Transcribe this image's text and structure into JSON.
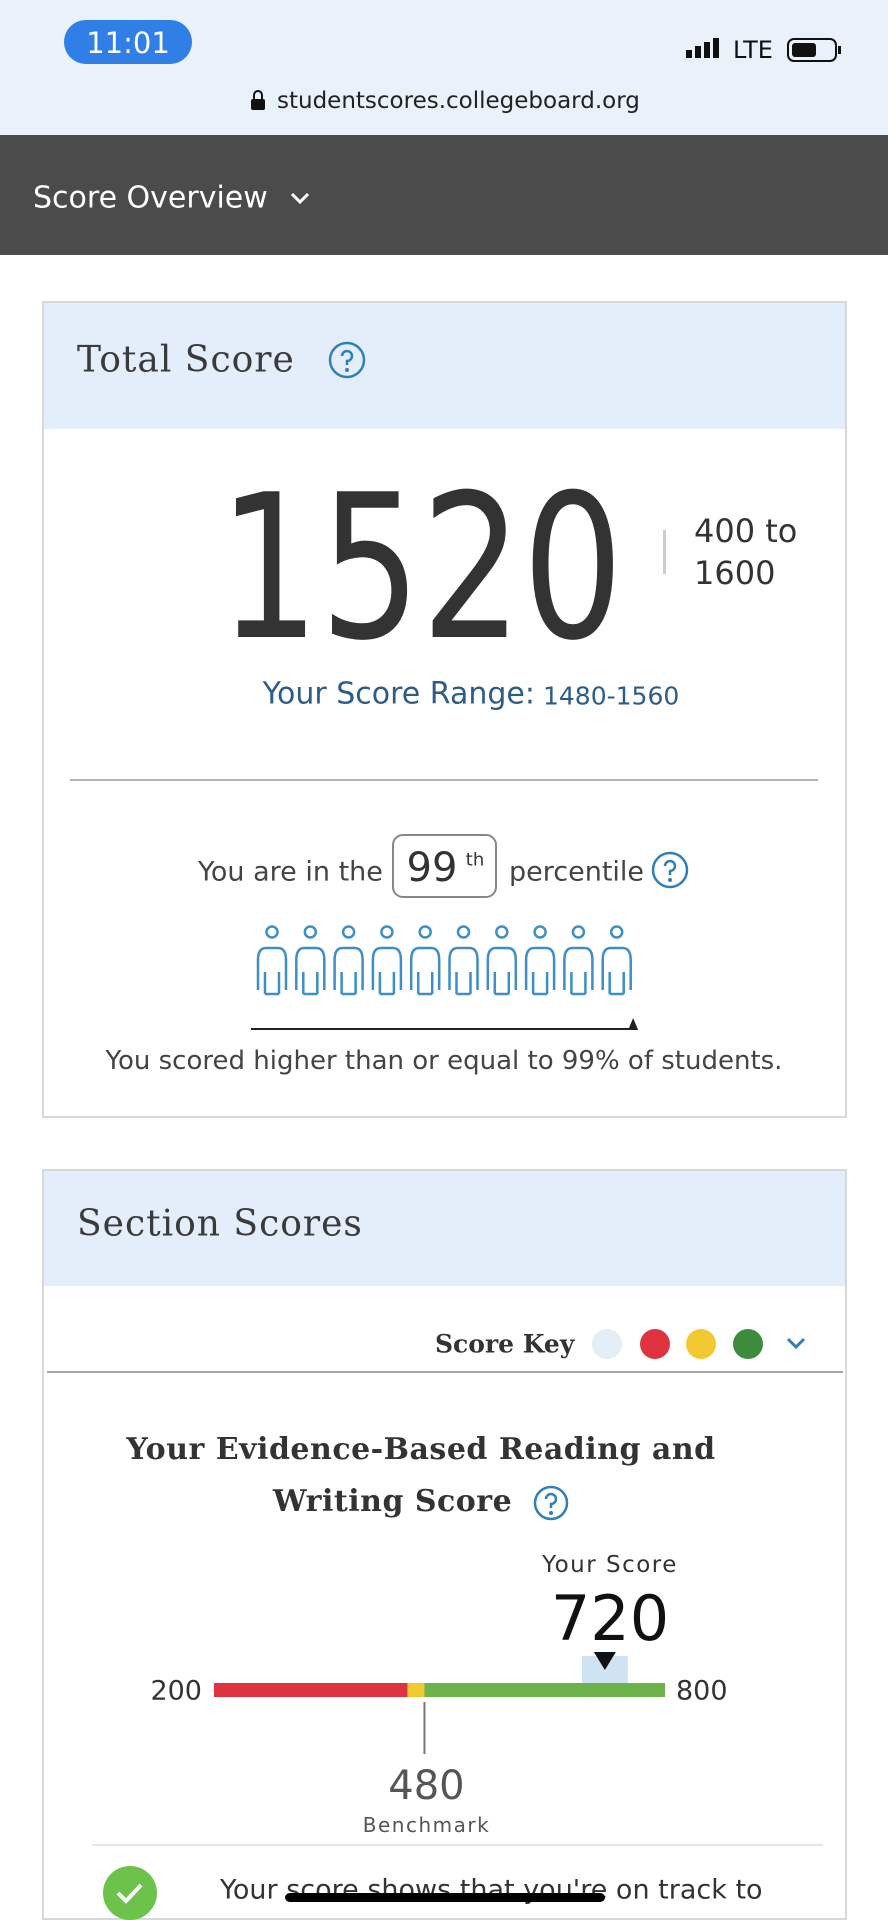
{
  "status_bar": {
    "time": "11:01",
    "network": "LTE"
  },
  "browser": {
    "url": "studentscores.collegeboard.org"
  },
  "nav": {
    "title": "Score Overview"
  },
  "total_score": {
    "title": "Total Score",
    "score": 1520,
    "scale": "400 to 1600",
    "range_label": "Your Score Range:",
    "range": "1480-1560",
    "percentile_prefix": "You are in the",
    "percentile": 99,
    "percentile_suffix": "th",
    "percentile_label": "percentile",
    "percentile_note": "You scored higher than or equal to 99% of students."
  },
  "section_scores": {
    "title": "Section Scores",
    "score_key": "Score Key",
    "ebrw": {
      "title": "Your Evidence-Based Reading and Writing Score",
      "your_score_label": "Your Score",
      "score": 720,
      "min": 200,
      "max": 800,
      "benchmark": 480,
      "benchmark_label": "Benchmark",
      "message": "Your score shows that you're on track to"
    }
  }
}
